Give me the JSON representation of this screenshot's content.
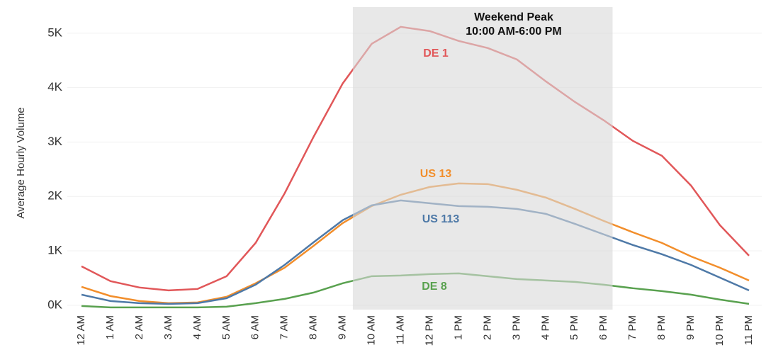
{
  "chart_data": {
    "type": "line",
    "y_axis_label": "Average Hourly Volume",
    "annotation": [
      "Weekend Peak",
      "10:00 AM-6:00 PM"
    ],
    "band": {
      "start": "10 AM",
      "end": "6 PM",
      "color": "#d9d9d9"
    },
    "categories": [
      "12 AM",
      "1 AM",
      "2 AM",
      "3 AM",
      "4 AM",
      "5 AM",
      "6 AM",
      "7 AM",
      "8 AM",
      "9 AM",
      "10 AM",
      "11 AM",
      "12 PM",
      "1 PM",
      "2 PM",
      "3 PM",
      "4 PM",
      "5 PM",
      "6 PM",
      "7 PM",
      "8 PM",
      "9 PM",
      "10 PM",
      "11 PM"
    ],
    "series": [
      {
        "name": "DE 1",
        "color": "#e15759",
        "values": [
          716,
          443,
          326,
          273,
          300,
          534,
          1146,
          2057,
          3099,
          4076,
          4805,
          5117,
          5039,
          4857,
          4727,
          4518,
          4115,
          3737,
          3398,
          3021,
          2747,
          2201,
          1471,
          911
        ]
      },
      {
        "name": "US 13",
        "color": "#f28e2b",
        "values": [
          339,
          169,
          78,
          39,
          52,
          156,
          404,
          690,
          1094,
          1510,
          1823,
          2031,
          2174,
          2240,
          2227,
          2122,
          1979,
          1771,
          1549,
          1341,
          1146,
          898,
          690,
          456
        ]
      },
      {
        "name": "US 113",
        "color": "#4e79a7",
        "values": [
          195,
          78,
          39,
          26,
          39,
          130,
          378,
          742,
          1159,
          1563,
          1836,
          1927,
          1875,
          1823,
          1810,
          1771,
          1680,
          1497,
          1302,
          1107,
          938,
          742,
          508,
          273
        ]
      },
      {
        "name": "DE 8",
        "color": "#59a14f",
        "values": [
          -13,
          -39,
          -39,
          -39,
          -39,
          -26,
          39,
          117,
          234,
          404,
          534,
          547,
          573,
          586,
          534,
          482,
          456,
          430,
          378,
          313,
          260,
          195,
          104,
          26
        ]
      }
    ],
    "ylim": [
      -80,
      5480
    ],
    "yticks": [
      {
        "value": 0,
        "label": "0K"
      },
      {
        "value": 1000,
        "label": "1K"
      },
      {
        "value": 2000,
        "label": "2K"
      },
      {
        "value": 3000,
        "label": "3K"
      },
      {
        "value": 4000,
        "label": "4K"
      },
      {
        "value": 5000,
        "label": "5K"
      }
    ],
    "grid": true
  }
}
